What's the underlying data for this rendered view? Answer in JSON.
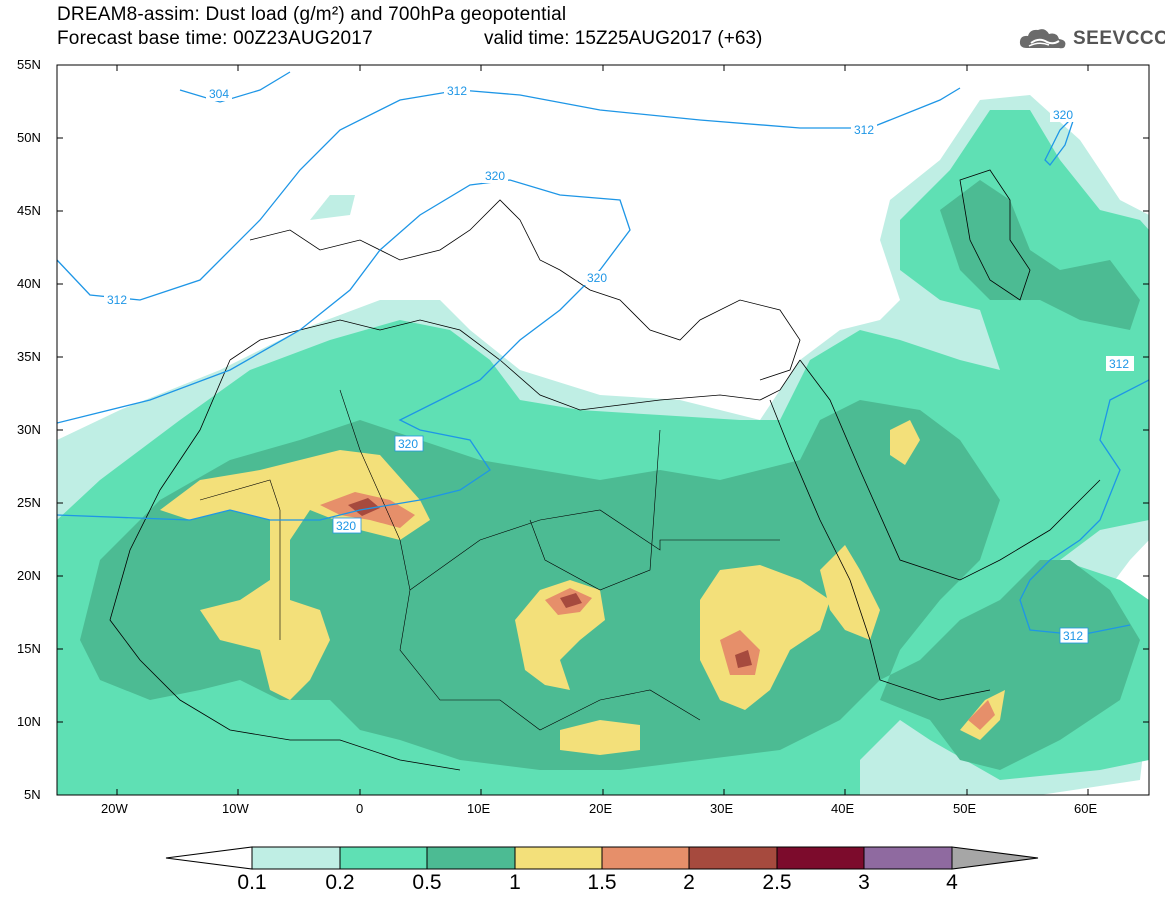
{
  "header": {
    "title_line1": "DREAM8-assim: Dust load (g/m²) and 700hPa geopotential",
    "title_line2": "Forecast base time: 00Z23AUG2017",
    "valid_time": "valid time: 15Z25AUG2017 (+63)",
    "logo_text": "SEEVCCC"
  },
  "axes": {
    "lat_labels": [
      "55N",
      "50N",
      "45N",
      "40N",
      "35N",
      "30N",
      "25N",
      "20N",
      "15N",
      "10N",
      "5N"
    ],
    "lon_labels": [
      "20W",
      "10W",
      "0",
      "10E",
      "20E",
      "30E",
      "40E",
      "50E",
      "60E"
    ]
  },
  "contour_labels": [
    "304",
    "312",
    "312",
    "320",
    "320",
    "320",
    "320",
    "312",
    "312",
    "312",
    "320"
  ],
  "colorbar": {
    "labels": [
      "0.1",
      "0.2",
      "0.5",
      "1",
      "1.5",
      "2",
      "2.5",
      "3",
      "4"
    ],
    "colors": [
      "#bfeee4",
      "#5fe0b4",
      "#4cbb93",
      "#f3e07a",
      "#e68f6a",
      "#a64a3e",
      "#7c0b2c",
      "#8f6aa0"
    ],
    "over_color": "#a6a6a6",
    "under_color": "#ffffff"
  },
  "map_colors": {
    "level_01": "#bfeee4",
    "level_02": "#5fe0b4",
    "level_05": "#4cbb93",
    "level_10": "#f3e07a",
    "level_15": "#e68f6a",
    "level_20": "#a64a3e",
    "level_25": "#7c0b2c",
    "contour_line": "#1e96e6"
  }
}
